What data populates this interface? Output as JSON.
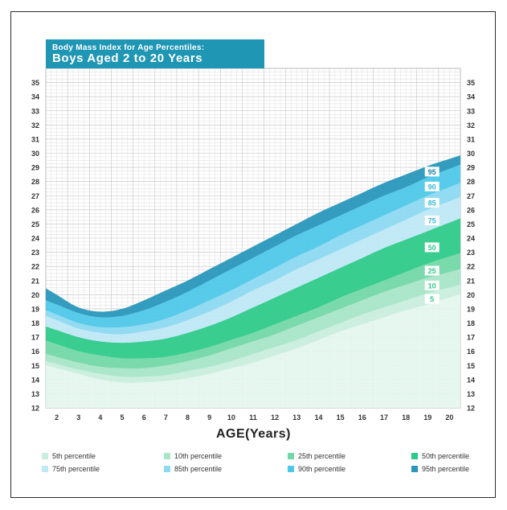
{
  "title": {
    "line1": "Body Mass Index for Age Percentiles:",
    "line2": "Boys Aged 2 to 20 Years"
  },
  "chart_data": {
    "type": "area",
    "xlabel": "AGE(Years)",
    "ylabel": "",
    "xlim": [
      1.5,
      20.5
    ],
    "ylim": [
      12,
      36
    ],
    "x_ticks": [
      2,
      3,
      4,
      5,
      6,
      7,
      8,
      9,
      10,
      11,
      12,
      13,
      14,
      15,
      16,
      17,
      18,
      19,
      20
    ],
    "y_ticks": [
      12,
      13,
      14,
      15,
      16,
      17,
      18,
      19,
      20,
      21,
      22,
      23,
      24,
      25,
      26,
      27,
      28,
      29,
      30,
      31,
      32,
      33,
      34,
      35
    ],
    "grid": true,
    "legend_position": "bottom",
    "x": [
      2,
      3,
      4,
      5,
      6,
      7,
      8,
      9,
      10,
      11,
      12,
      13,
      14,
      15,
      16,
      17,
      18,
      19,
      20
    ],
    "series": [
      {
        "name": "5th percentile",
        "label": "5",
        "color": "#c9eedd",
        "values": [
          14.8,
          14.4,
          14.0,
          13.8,
          13.8,
          13.9,
          14.1,
          14.4,
          14.8,
          15.2,
          15.7,
          16.2,
          16.8,
          17.4,
          17.9,
          18.4,
          18.9,
          19.3,
          19.8
        ]
      },
      {
        "name": "10th percentile",
        "label": "10",
        "color": "#a8e6c8",
        "values": [
          15.1,
          14.7,
          14.4,
          14.2,
          14.2,
          14.3,
          14.6,
          14.9,
          15.3,
          15.8,
          16.3,
          16.8,
          17.4,
          18.0,
          18.6,
          19.1,
          19.6,
          20.1,
          20.5
        ]
      },
      {
        "name": "25th percentile",
        "label": "25",
        "color": "#73d8a8",
        "values": [
          15.6,
          15.2,
          14.9,
          14.8,
          14.8,
          15.0,
          15.3,
          15.7,
          16.2,
          16.7,
          17.2,
          17.8,
          18.4,
          19.0,
          19.6,
          20.2,
          20.7,
          21.2,
          21.6
        ]
      },
      {
        "name": "50th percentile",
        "label": "50",
        "color": "#2fca8a",
        "values": [
          16.5,
          16.0,
          15.7,
          15.5,
          15.5,
          15.6,
          15.9,
          16.3,
          16.8,
          17.3,
          17.9,
          18.5,
          19.1,
          19.8,
          20.4,
          21.0,
          21.6,
          22.2,
          22.7
        ]
      },
      {
        "name": "75th percentile",
        "label": "75",
        "color": "#bfe8f6",
        "values": [
          17.5,
          17.0,
          16.7,
          16.6,
          16.7,
          16.9,
          17.3,
          17.8,
          18.4,
          19.1,
          19.8,
          20.5,
          21.2,
          21.9,
          22.6,
          23.3,
          23.9,
          24.5,
          25.1
        ]
      },
      {
        "name": "85th percentile",
        "label": "85",
        "color": "#8dd9f1",
        "values": [
          18.2,
          17.6,
          17.3,
          17.2,
          17.4,
          17.7,
          18.2,
          18.8,
          19.5,
          20.3,
          21.0,
          21.8,
          22.5,
          23.2,
          23.9,
          24.6,
          25.3,
          26.0,
          26.6
        ]
      },
      {
        "name": "90th percentile",
        "label": "90",
        "color": "#4ec8e8",
        "values": [
          18.6,
          18.0,
          17.7,
          17.7,
          17.9,
          18.3,
          18.9,
          19.6,
          20.3,
          21.1,
          21.9,
          22.7,
          23.4,
          24.2,
          24.9,
          25.6,
          26.3,
          27.0,
          27.6
        ]
      },
      {
        "name": "95th percentile",
        "label": "95",
        "color": "#2997bc",
        "values": [
          19.3,
          18.7,
          18.4,
          18.5,
          18.9,
          19.5,
          20.2,
          21.0,
          21.8,
          22.6,
          23.4,
          24.2,
          24.9,
          25.6,
          26.3,
          27.0,
          27.6,
          28.3,
          28.9
        ]
      }
    ],
    "top_boundary": [
      20.0,
      19.1,
      18.8,
      19.0,
      19.6,
      20.3,
      21.0,
      21.8,
      22.6,
      23.4,
      24.2,
      25.0,
      25.8,
      26.5,
      27.2,
      27.9,
      28.5,
      29.1,
      29.6
    ],
    "bottom_fill_color": "#e3f6ed"
  },
  "legend": [
    {
      "label": "5th percentile",
      "color": "#c9eedd"
    },
    {
      "label": "10th percentile",
      "color": "#a8e6c8"
    },
    {
      "label": "25th percentile",
      "color": "#73d8a8"
    },
    {
      "label": "50th percentile",
      "color": "#2fca8a"
    },
    {
      "label": "75th percentile",
      "color": "#bfe8f6"
    },
    {
      "label": "85th percentile",
      "color": "#8dd9f1"
    },
    {
      "label": "90th percentile",
      "color": "#4ec8e8"
    },
    {
      "label": "95th percentile",
      "color": "#2997bc"
    }
  ]
}
